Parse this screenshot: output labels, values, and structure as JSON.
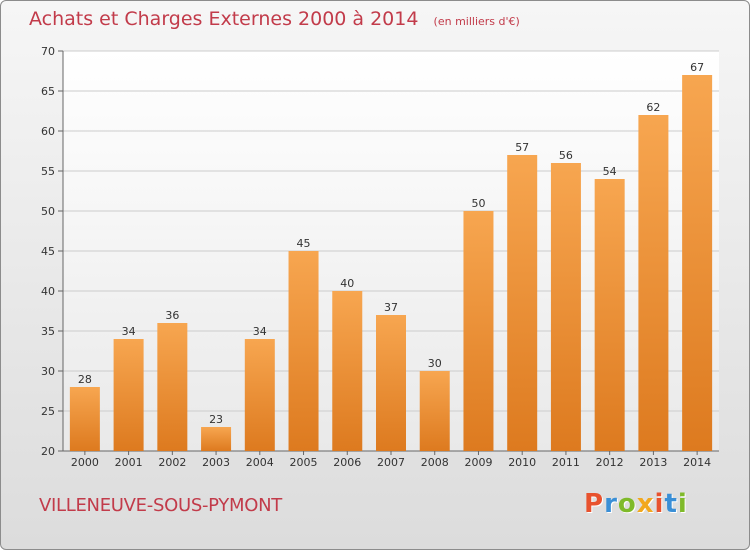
{
  "header": {
    "title": "Achats et Charges Externes 2000 à 2014",
    "subtitle": "(en milliers d'€)"
  },
  "footer": {
    "place": "VILLENEUVE-SOUS-PYMONT",
    "logo_text": "Proxiti"
  },
  "colors": {
    "bar_light": "#f7a650",
    "bar_dark": "#dd7a1f",
    "title": "#c23b4a",
    "logo_letters": [
      "#e8522e",
      "#3a8fd6",
      "#7fba2a",
      "#f2a81e",
      "#e8522e",
      "#3a8fd6",
      "#7fba2a"
    ]
  },
  "chart_data": {
    "type": "bar",
    "title": "Achats et Charges Externes 2000 à 2014",
    "subtitle": "(en milliers d'€)",
    "categories": [
      "2000",
      "2001",
      "2002",
      "2003",
      "2004",
      "2005",
      "2006",
      "2007",
      "2008",
      "2009",
      "2010",
      "2011",
      "2012",
      "2013",
      "2014"
    ],
    "values": [
      28,
      34,
      36,
      23,
      34,
      45,
      40,
      37,
      30,
      50,
      57,
      56,
      54,
      62,
      67
    ],
    "ylim": [
      20,
      70
    ],
    "yticks": [
      20,
      25,
      30,
      35,
      40,
      45,
      50,
      55,
      60,
      65,
      70
    ],
    "grid": true,
    "xlabel": "",
    "ylabel": ""
  }
}
